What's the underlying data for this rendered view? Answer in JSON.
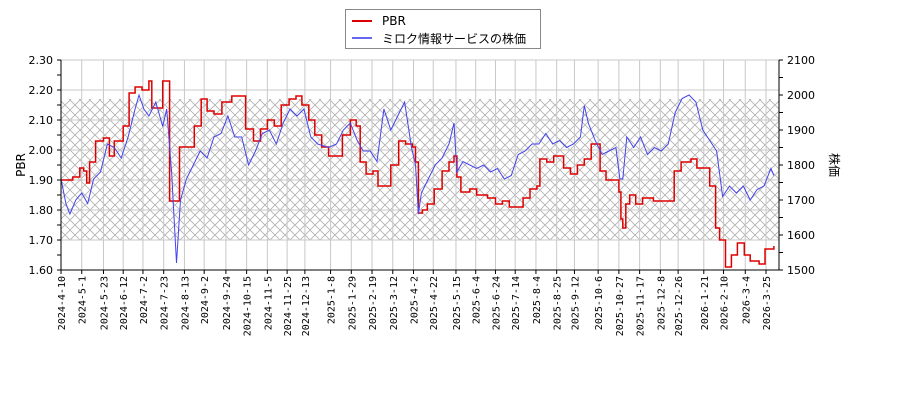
{
  "legend": {
    "items": [
      {
        "label": "PBR",
        "color": "#dd0000"
      },
      {
        "label": "ミロク情報サービスの株価",
        "color": "#4444ee"
      }
    ]
  },
  "chart_data": {
    "type": "line",
    "title": "",
    "xlabel": "",
    "ylabel_left": "PBR",
    "ylabel_right": "株価",
    "ylim_left": [
      1.6,
      2.3
    ],
    "ylim_right": [
      1500,
      2100
    ],
    "yticks_left": [
      "1.60",
      "1.70",
      "1.80",
      "1.90",
      "2.00",
      "2.10",
      "2.20",
      "2.30"
    ],
    "yticks_right": [
      "1500",
      "1600",
      "1700",
      "1800",
      "1900",
      "2000",
      "2100"
    ],
    "x_tick_labels": [
      "2024-4-10",
      "2024-5-1",
      "2024-5-23",
      "2024-6-12",
      "2024-7-2",
      "2024-7-23",
      "2024-8-13",
      "2024-9-2",
      "2024-9-24",
      "2024-10-15",
      "2024-11-5",
      "2024-11-25",
      "2024-12-13",
      "2025-1-8",
      "2025-1-29",
      "2025-2-19",
      "2025-3-12",
      "2025-4-2",
      "2025-4-22",
      "2025-5-15",
      "2025-6-4",
      "2025-6-24",
      "2025-7-14",
      "2025-8-4",
      "2025-8-25",
      "2025-9-12",
      "2025-10-6",
      "2025-10-27",
      "2025-11-17",
      "2025-12-8",
      "2025-12-26",
      "2026-1-21",
      "2026-2-10",
      "2026-3-4",
      "2026-3-25"
    ],
    "grid": true,
    "legend_position": "top-center",
    "shaded_band_left": [
      1.7,
      2.17
    ],
    "series": [
      {
        "name": "PBR",
        "axis": "left",
        "color": "#dd0000",
        "points": [
          [
            "2024-4-10",
            1.9
          ],
          [
            "2024-4-17",
            1.9
          ],
          [
            "2024-4-22",
            1.91
          ],
          [
            "2024-4-29",
            1.94
          ],
          [
            "2024-5-3",
            1.93
          ],
          [
            "2024-5-6",
            1.89
          ],
          [
            "2024-5-9",
            1.96
          ],
          [
            "2024-5-15",
            2.03
          ],
          [
            "2024-5-23",
            2.04
          ],
          [
            "2024-5-29",
            1.98
          ],
          [
            "2024-6-3",
            2.03
          ],
          [
            "2024-6-12",
            2.08
          ],
          [
            "2024-6-18",
            2.19
          ],
          [
            "2024-6-24",
            2.21
          ],
          [
            "2024-7-1",
            2.2
          ],
          [
            "2024-7-8",
            2.23
          ],
          [
            "2024-7-11",
            2.14
          ],
          [
            "2024-7-17",
            2.14
          ],
          [
            "2024-7-22",
            2.23
          ],
          [
            "2024-7-26",
            2.23
          ],
          [
            "2024-7-29",
            1.83
          ],
          [
            "2024-8-6",
            1.83
          ],
          [
            "2024-8-8",
            2.01
          ],
          [
            "2024-8-21",
            2.01
          ],
          [
            "2024-8-23",
            2.08
          ],
          [
            "2024-8-30",
            2.17
          ],
          [
            "2024-9-5",
            2.13
          ],
          [
            "2024-9-12",
            2.12
          ],
          [
            "2024-9-20",
            2.16
          ],
          [
            "2024-9-30",
            2.18
          ],
          [
            "2024-10-10",
            2.18
          ],
          [
            "2024-10-14",
            2.07
          ],
          [
            "2024-10-22",
            2.03
          ],
          [
            "2024-10-29",
            2.07
          ],
          [
            "2024-11-5",
            2.1
          ],
          [
            "2024-11-12",
            2.08
          ],
          [
            "2024-11-19",
            2.15
          ],
          [
            "2024-11-27",
            2.17
          ],
          [
            "2024-12-4",
            2.18
          ],
          [
            "2024-12-10",
            2.15
          ],
          [
            "2024-12-17",
            2.1
          ],
          [
            "2024-12-23",
            2.05
          ],
          [
            "2024-12-30",
            2.01
          ],
          [
            "2025-1-6",
            1.98
          ],
          [
            "2025-1-14",
            1.98
          ],
          [
            "2025-1-20",
            2.05
          ],
          [
            "2025-1-28",
            2.1
          ],
          [
            "2025-2-3",
            2.08
          ],
          [
            "2025-2-7",
            1.96
          ],
          [
            "2025-2-13",
            1.92
          ],
          [
            "2025-2-20",
            1.93
          ],
          [
            "2025-2-25",
            1.88
          ],
          [
            "2025-3-4",
            1.88
          ],
          [
            "2025-3-10",
            1.95
          ],
          [
            "2025-3-18",
            2.03
          ],
          [
            "2025-3-25",
            2.02
          ],
          [
            "2025-4-1",
            2.01
          ],
          [
            "2025-4-4",
            1.96
          ],
          [
            "2025-4-7",
            1.79
          ],
          [
            "2025-4-11",
            1.8
          ],
          [
            "2025-4-16",
            1.82
          ],
          [
            "2025-4-23",
            1.87
          ],
          [
            "2025-5-1",
            1.93
          ],
          [
            "2025-5-8",
            1.96
          ],
          [
            "2025-5-13",
            1.98
          ],
          [
            "2025-5-16",
            1.91
          ],
          [
            "2025-5-20",
            1.86
          ],
          [
            "2025-5-29",
            1.87
          ],
          [
            "2025-6-5",
            1.85
          ],
          [
            "2025-6-16",
            1.84
          ],
          [
            "2025-6-24",
            1.82
          ],
          [
            "2025-7-1",
            1.83
          ],
          [
            "2025-7-8",
            1.81
          ],
          [
            "2025-7-22",
            1.84
          ],
          [
            "2025-7-29",
            1.87
          ],
          [
            "2025-8-5",
            1.88
          ],
          [
            "2025-8-8",
            1.97
          ],
          [
            "2025-8-15",
            1.96
          ],
          [
            "2025-8-22",
            1.98
          ],
          [
            "2025-9-1",
            1.94
          ],
          [
            "2025-9-8",
            1.92
          ],
          [
            "2025-9-15",
            1.95
          ],
          [
            "2025-9-22",
            1.97
          ],
          [
            "2025-9-29",
            2.02
          ],
          [
            "2025-10-8",
            1.93
          ],
          [
            "2025-10-14",
            1.9
          ],
          [
            "2025-10-21",
            1.9
          ],
          [
            "2025-10-27",
            1.86
          ],
          [
            "2025-10-29",
            1.77
          ],
          [
            "2025-10-31",
            1.74
          ],
          [
            "2025-11-3",
            1.82
          ],
          [
            "2025-11-7",
            1.85
          ],
          [
            "2025-11-13",
            1.82
          ],
          [
            "2025-11-20",
            1.84
          ],
          [
            "2025-12-1",
            1.83
          ],
          [
            "2025-12-19",
            1.83
          ],
          [
            "2025-12-22",
            1.93
          ],
          [
            "2025-12-29",
            1.96
          ],
          [
            "2026-1-8",
            1.97
          ],
          [
            "2026-1-14",
            1.94
          ],
          [
            "2026-1-21",
            1.94
          ],
          [
            "2026-1-27",
            1.88
          ],
          [
            "2026-2-2",
            1.74
          ],
          [
            "2026-2-6",
            1.7
          ],
          [
            "2026-2-12",
            1.61
          ],
          [
            "2026-2-18",
            1.65
          ],
          [
            "2026-2-24",
            1.69
          ],
          [
            "2026-3-3",
            1.65
          ],
          [
            "2026-3-9",
            1.63
          ],
          [
            "2026-3-18",
            1.62
          ],
          [
            "2026-3-24",
            1.67
          ],
          [
            "2026-4-2",
            1.68
          ]
        ]
      },
      {
        "name": "ミロク情報サービスの株価",
        "axis": "right",
        "color": "#4444ee",
        "points": [
          [
            "2024-4-10",
            1760
          ],
          [
            "2024-4-15",
            1690
          ],
          [
            "2024-4-19",
            1660
          ],
          [
            "2024-4-25",
            1700
          ],
          [
            "2024-5-1",
            1720
          ],
          [
            "2024-5-7",
            1690
          ],
          [
            "2024-5-13",
            1760
          ],
          [
            "2024-5-20",
            1780
          ],
          [
            "2024-5-27",
            1860
          ],
          [
            "2024-6-3",
            1850
          ],
          [
            "2024-6-10",
            1820
          ],
          [
            "2024-6-17",
            1880
          ],
          [
            "2024-6-24",
            1960
          ],
          [
            "2024-6-28",
            2000
          ],
          [
            "2024-7-3",
            1960
          ],
          [
            "2024-7-8",
            1940
          ],
          [
            "2024-7-15",
            1980
          ],
          [
            "2024-7-22",
            1910
          ],
          [
            "2024-7-26",
            1960
          ],
          [
            "2024-7-31",
            1780
          ],
          [
            "2024-8-5",
            1520
          ],
          [
            "2024-8-9",
            1700
          ],
          [
            "2024-8-15",
            1760
          ],
          [
            "2024-8-22",
            1800
          ],
          [
            "2024-8-29",
            1840
          ],
          [
            "2024-9-5",
            1820
          ],
          [
            "2024-9-12",
            1880
          ],
          [
            "2024-9-19",
            1890
          ],
          [
            "2024-9-26",
            1940
          ],
          [
            "2024-10-3",
            1880
          ],
          [
            "2024-10-10",
            1880
          ],
          [
            "2024-10-17",
            1800
          ],
          [
            "2024-10-24",
            1840
          ],
          [
            "2024-10-31",
            1890
          ],
          [
            "2024-11-7",
            1900
          ],
          [
            "2024-11-14",
            1860
          ],
          [
            "2024-11-21",
            1920
          ],
          [
            "2024-11-28",
            1960
          ],
          [
            "2024-12-5",
            1940
          ],
          [
            "2024-12-12",
            1960
          ],
          [
            "2024-12-19",
            1880
          ],
          [
            "2024-12-26",
            1860
          ],
          [
            "2025-1-6",
            1850
          ],
          [
            "2025-1-14",
            1860
          ],
          [
            "2025-1-21",
            1900
          ],
          [
            "2025-1-28",
            1920
          ],
          [
            "2025-2-4",
            1870
          ],
          [
            "2025-2-10",
            1840
          ],
          [
            "2025-2-17",
            1840
          ],
          [
            "2025-2-24",
            1810
          ],
          [
            "2025-3-3",
            1960
          ],
          [
            "2025-3-10",
            1900
          ],
          [
            "2025-3-17",
            1940
          ],
          [
            "2025-3-24",
            1980
          ],
          [
            "2025-3-31",
            1850
          ],
          [
            "2025-4-4",
            1800
          ],
          [
            "2025-4-7",
            1660
          ],
          [
            "2025-4-10",
            1720
          ],
          [
            "2025-4-17",
            1760
          ],
          [
            "2025-4-24",
            1800
          ],
          [
            "2025-5-1",
            1820
          ],
          [
            "2025-5-8",
            1860
          ],
          [
            "2025-5-13",
            1920
          ],
          [
            "2025-5-16",
            1780
          ],
          [
            "2025-5-22",
            1810
          ],
          [
            "2025-5-29",
            1800
          ],
          [
            "2025-6-5",
            1790
          ],
          [
            "2025-6-12",
            1800
          ],
          [
            "2025-6-19",
            1780
          ],
          [
            "2025-6-26",
            1790
          ],
          [
            "2025-7-3",
            1760
          ],
          [
            "2025-7-10",
            1770
          ],
          [
            "2025-7-17",
            1830
          ],
          [
            "2025-7-24",
            1840
          ],
          [
            "2025-7-31",
            1860
          ],
          [
            "2025-8-7",
            1860
          ],
          [
            "2025-8-14",
            1890
          ],
          [
            "2025-8-21",
            1860
          ],
          [
            "2025-8-28",
            1870
          ],
          [
            "2025-9-4",
            1850
          ],
          [
            "2025-9-11",
            1860
          ],
          [
            "2025-9-18",
            1880
          ],
          [
            "2025-9-22",
            1970
          ],
          [
            "2025-9-26",
            1920
          ],
          [
            "2025-10-3",
            1870
          ],
          [
            "2025-10-10",
            1830
          ],
          [
            "2025-10-17",
            1840
          ],
          [
            "2025-10-24",
            1850
          ],
          [
            "2025-10-28",
            1760
          ],
          [
            "2025-10-31",
            1760
          ],
          [
            "2025-11-4",
            1880
          ],
          [
            "2025-11-11",
            1850
          ],
          [
            "2025-11-18",
            1880
          ],
          [
            "2025-11-25",
            1830
          ],
          [
            "2025-12-2",
            1850
          ],
          [
            "2025-12-9",
            1840
          ],
          [
            "2025-12-16",
            1860
          ],
          [
            "2025-12-23",
            1950
          ],
          [
            "2025-12-30",
            1990
          ],
          [
            "2026-1-6",
            2000
          ],
          [
            "2026-1-13",
            1980
          ],
          [
            "2026-1-20",
            1900
          ],
          [
            "2026-1-27",
            1870
          ],
          [
            "2026-2-3",
            1840
          ],
          [
            "2026-2-9",
            1710
          ],
          [
            "2026-2-16",
            1740
          ],
          [
            "2026-2-23",
            1720
          ],
          [
            "2026-3-2",
            1740
          ],
          [
            "2026-3-9",
            1700
          ],
          [
            "2026-3-16",
            1730
          ],
          [
            "2026-3-23",
            1740
          ],
          [
            "2026-3-30",
            1790
          ],
          [
            "2026-4-2",
            1770
          ]
        ]
      }
    ]
  }
}
